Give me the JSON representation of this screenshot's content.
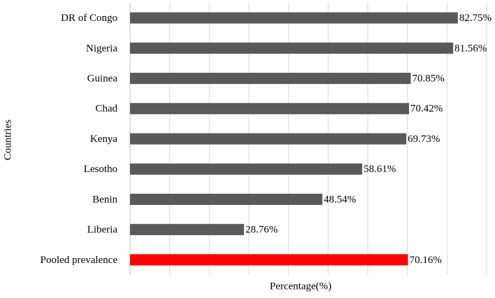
{
  "chart_data": {
    "type": "bar",
    "orientation": "horizontal",
    "x_label": "Percentage(%)",
    "y_label": "Countries",
    "categories": [
      "DR of Congo",
      "Nigeria",
      "Guinea",
      "Chad",
      "Kenya",
      "Lesotho",
      "Benin",
      "Liberia",
      "Pooled prevalence"
    ],
    "values": [
      82.75,
      81.56,
      70.85,
      70.42,
      69.73,
      58.61,
      48.54,
      28.76,
      70.16
    ],
    "value_labels": [
      "82.75%",
      "81.56%",
      "70.85%",
      "70.42%",
      "69.73%",
      "58.61%",
      "48.54%",
      "28.76%",
      "70.16%"
    ],
    "colors": [
      "#595959",
      "#595959",
      "#595959",
      "#595959",
      "#595959",
      "#595959",
      "#595959",
      "#595959",
      "#ff0000"
    ],
    "xlim": [
      0,
      90
    ],
    "xticks": [
      0,
      10,
      20,
      30,
      40,
      50,
      60,
      70,
      80,
      90
    ],
    "grid": true
  }
}
